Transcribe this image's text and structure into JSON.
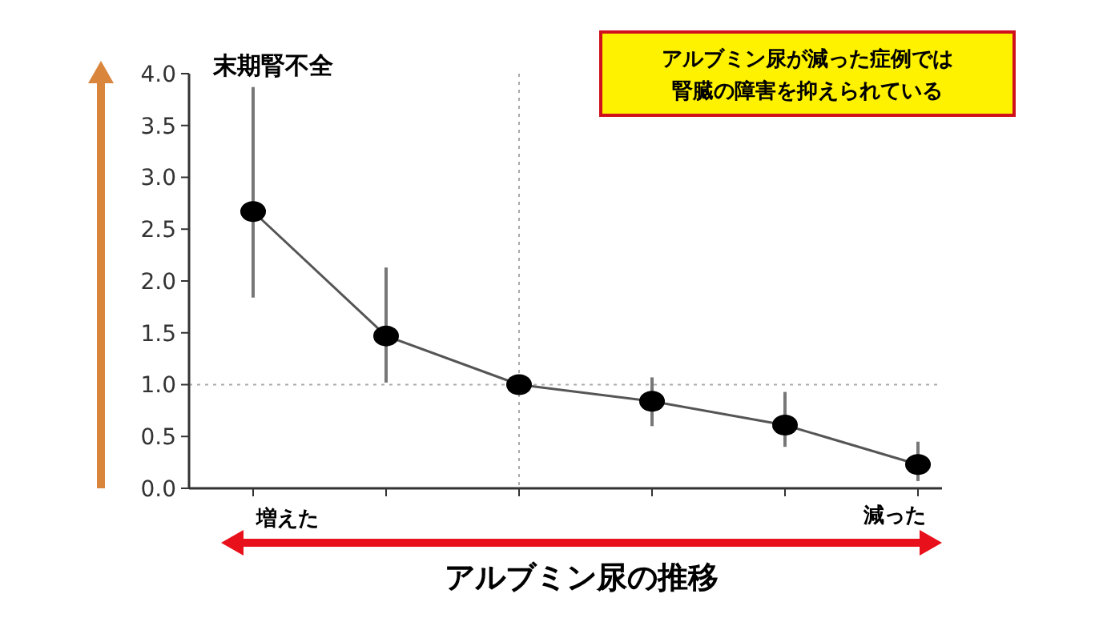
{
  "chart_data": {
    "type": "line",
    "xlabel": "アルブミン尿の推移",
    "categories": [
      null,
      null,
      null,
      null,
      null,
      null
    ],
    "series": [
      {
        "color": "#555555",
        "values": [
          2.67,
          1.47,
          1.0,
          0.84,
          0.61,
          0.23
        ],
        "errors": [
          [
            1.84,
            3.87
          ],
          [
            1.02,
            2.13
          ],
          null,
          [
            0.6,
            1.07
          ],
          [
            0.4,
            0.93
          ],
          [
            0.07,
            0.45
          ]
        ]
      }
    ],
    "ylim": [
      0,
      4.0
    ],
    "yticks": [
      {
        "value": 0,
        "label": "0.0"
      },
      {
        "value": 0.5,
        "label": "0.5"
      },
      {
        "value": 1,
        "label": "1.0"
      },
      {
        "value": 1.5,
        "label": "1.5"
      },
      {
        "value": 2,
        "label": "2.0"
      },
      {
        "value": 2.5,
        "label": "2.5"
      },
      {
        "value": 3,
        "label": "3.0"
      },
      {
        "value": 3.5,
        "label": "3.5"
      },
      {
        "value": 4,
        "label": "4.0"
      }
    ],
    "tick_labels": "y",
    "marker": "circle",
    "line_style": "solid",
    "grid": false,
    "ref_lines": [
      {
        "axis": "y",
        "value": 1.0,
        "line_style": "dotted",
        "color": "#aaaaaa"
      }
    ],
    "annotations": [
      "末期腎不全",
      "アルブミン尿が減った症例では腎臓の障害を抑えられている",
      "増えた",
      "減った"
    ]
  }
}
